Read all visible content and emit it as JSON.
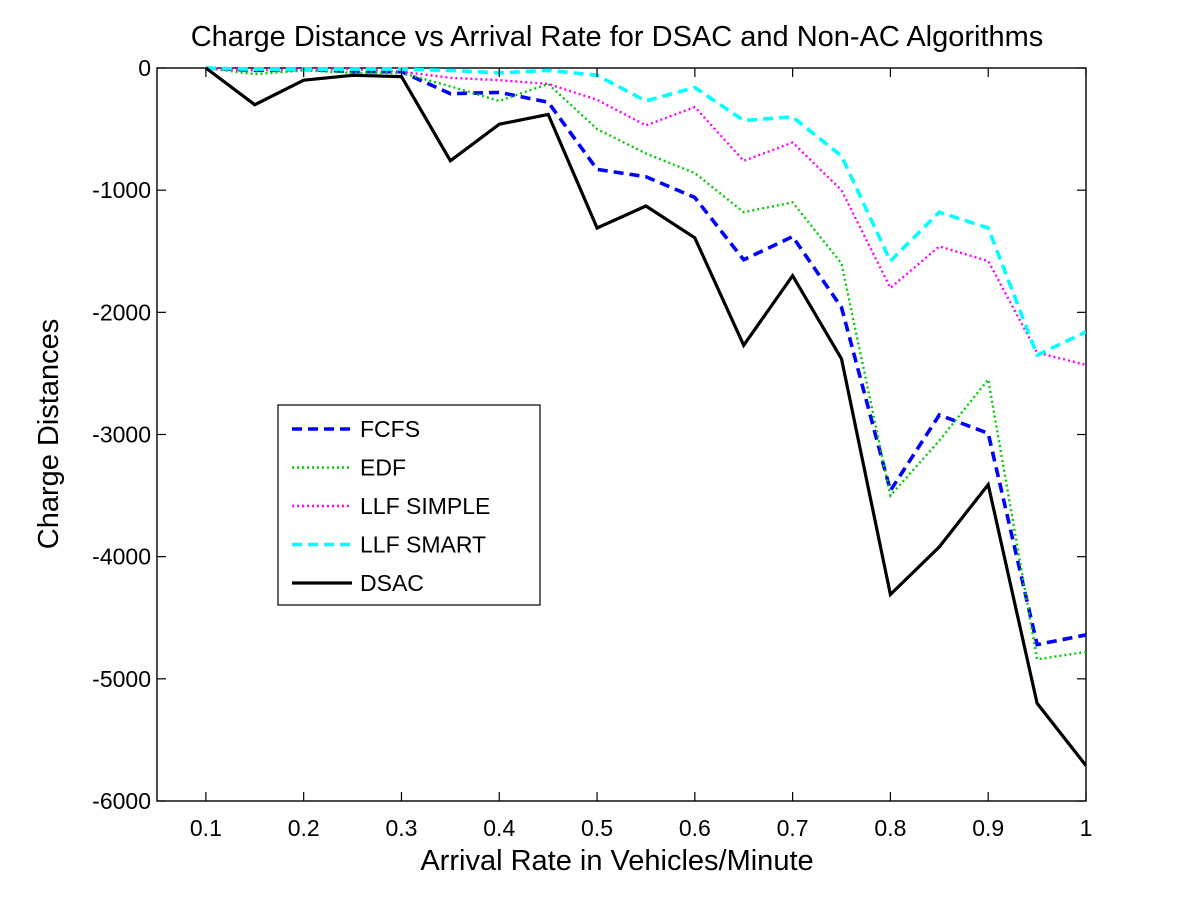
{
  "chart_data": {
    "type": "line",
    "title": "Charge Distance vs Arrival Rate for DSAC and Non-AC Algorithms",
    "xlabel": "Arrival Rate in Vehicles/Minute",
    "ylabel": "Charge Distances",
    "xlim": [
      0.05,
      1.0
    ],
    "ylim": [
      -6000,
      0
    ],
    "xticks": [
      0.1,
      0.2,
      0.3,
      0.4,
      0.5,
      0.6,
      0.7,
      0.8,
      0.9,
      1
    ],
    "xtick_labels": [
      "0.1",
      "0.2",
      "0.3",
      "0.4",
      "0.5",
      "0.6",
      "0.7",
      "0.8",
      "0.9",
      "1"
    ],
    "yticks": [
      0,
      -1000,
      -2000,
      -3000,
      -4000,
      -5000,
      -6000
    ],
    "ytick_labels": [
      "0",
      "-1000",
      "-2000",
      "-3000",
      "-4000",
      "-5000",
      "-6000"
    ],
    "grid": false,
    "legend_position": "middle-left",
    "x": [
      0.1,
      0.15,
      0.2,
      0.25,
      0.3,
      0.35,
      0.4,
      0.45,
      0.5,
      0.55,
      0.6,
      0.65,
      0.7,
      0.75,
      0.8,
      0.85,
      0.9,
      0.95,
      1.0
    ],
    "series": [
      {
        "name": "FCFS",
        "color": "#0000ff",
        "style": "dashed",
        "values": [
          0,
          -20,
          -10,
          -30,
          -30,
          -210,
          -200,
          -280,
          -830,
          -890,
          -1060,
          -1570,
          -1380,
          -1960,
          -3460,
          -2840,
          -2990,
          -4720,
          -4640
        ]
      },
      {
        "name": "EDF",
        "color": "#00cc00",
        "style": "dotted",
        "values": [
          0,
          -50,
          -20,
          -40,
          -40,
          -150,
          -270,
          -130,
          -500,
          -700,
          -860,
          -1180,
          -1100,
          -1600,
          -3500,
          -3050,
          -2550,
          -4840,
          -4780
        ]
      },
      {
        "name": "LLF SIMPLE",
        "color": "#ff00ff",
        "style": "dotted",
        "values": [
          0,
          -20,
          -10,
          -10,
          -30,
          -80,
          -100,
          -130,
          -260,
          -470,
          -320,
          -760,
          -610,
          -1000,
          -1800,
          -1460,
          -1580,
          -2330,
          -2430
        ]
      },
      {
        "name": "LLF SMART",
        "color": "#00ffff",
        "style": "dashed",
        "values": [
          0,
          -10,
          -10,
          -10,
          -10,
          -20,
          -40,
          -20,
          -60,
          -270,
          -160,
          -430,
          -400,
          -720,
          -1580,
          -1180,
          -1310,
          -2350,
          -2160
        ]
      },
      {
        "name": "DSAC",
        "color": "#000000",
        "style": "solid",
        "values": [
          0,
          -300,
          -100,
          -60,
          -70,
          -760,
          -460,
          -380,
          -1310,
          -1130,
          -1390,
          -2270,
          -1700,
          -2380,
          -4310,
          -3920,
          -3410,
          -5200,
          -5710
        ]
      }
    ]
  }
}
